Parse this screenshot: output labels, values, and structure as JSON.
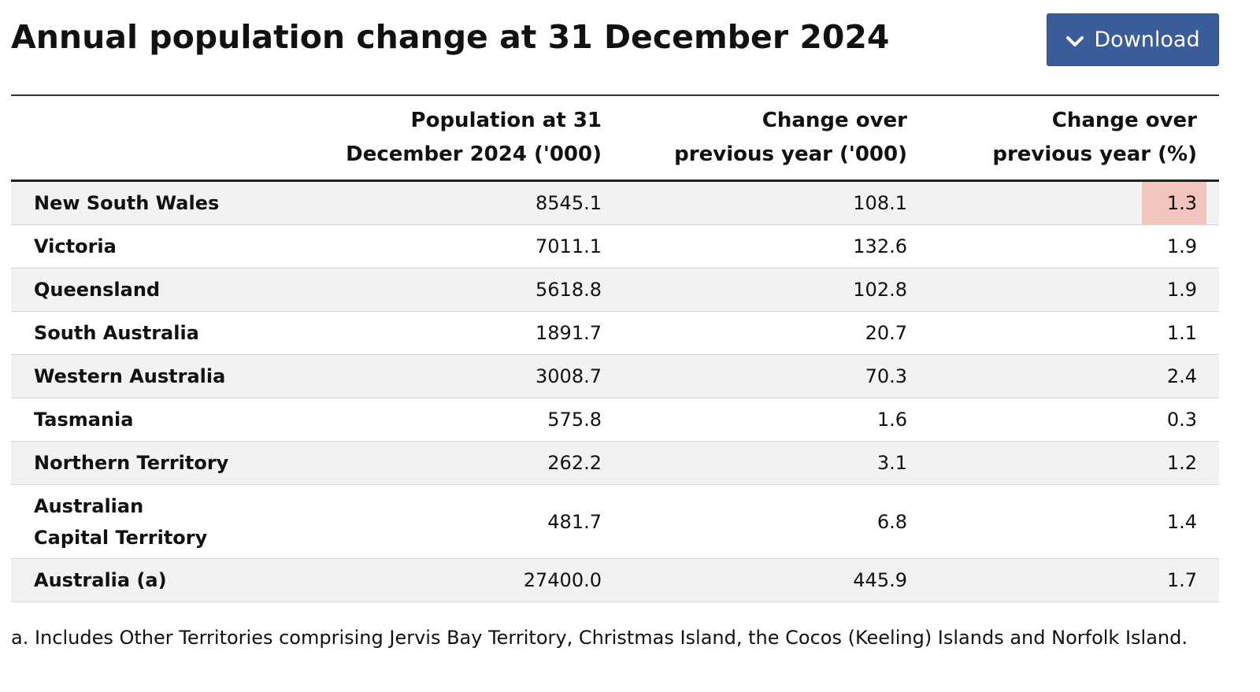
{
  "title": "Annual population change at 31 December 2024",
  "download": {
    "label": "Download",
    "icon": "chevron-down-icon",
    "color": "#3a5d9a"
  },
  "table": {
    "headers": {
      "region": "",
      "population": "Population at 31 December 2024 ('000)",
      "change": "Change over previous year ('000)",
      "change_pct": "Change over previous year (%)"
    },
    "rows": [
      {
        "region": "New South Wales",
        "population": "8545.1",
        "change": "108.1",
        "change_pct": "1.3",
        "highlight": true
      },
      {
        "region": "Victoria",
        "population": "7011.1",
        "change": "132.6",
        "change_pct": "1.9"
      },
      {
        "region": "Queensland",
        "population": "5618.8",
        "change": "102.8",
        "change_pct": "1.9"
      },
      {
        "region": "South Australia",
        "population": "1891.7",
        "change": "20.7",
        "change_pct": "1.1"
      },
      {
        "region": "Western Australia",
        "population": "3008.7",
        "change": "70.3",
        "change_pct": "2.4"
      },
      {
        "region": "Tasmania",
        "population": "575.8",
        "change": "1.6",
        "change_pct": "0.3"
      },
      {
        "region": "Northern Territory",
        "population": "262.2",
        "change": "3.1",
        "change_pct": "1.2"
      },
      {
        "region": "Australian Capital Territory",
        "population": "481.7",
        "change": "6.8",
        "change_pct": "1.4"
      },
      {
        "region": "Australia (a)",
        "population": "27400.0",
        "change": "445.9",
        "change_pct": "1.7"
      }
    ],
    "highlight_color": "#f1c5bd"
  },
  "footnote": "a. Includes Other Territories comprising Jervis Bay Territory, Christmas Island, the Cocos (Keeling) Islands and Norfolk Island."
}
